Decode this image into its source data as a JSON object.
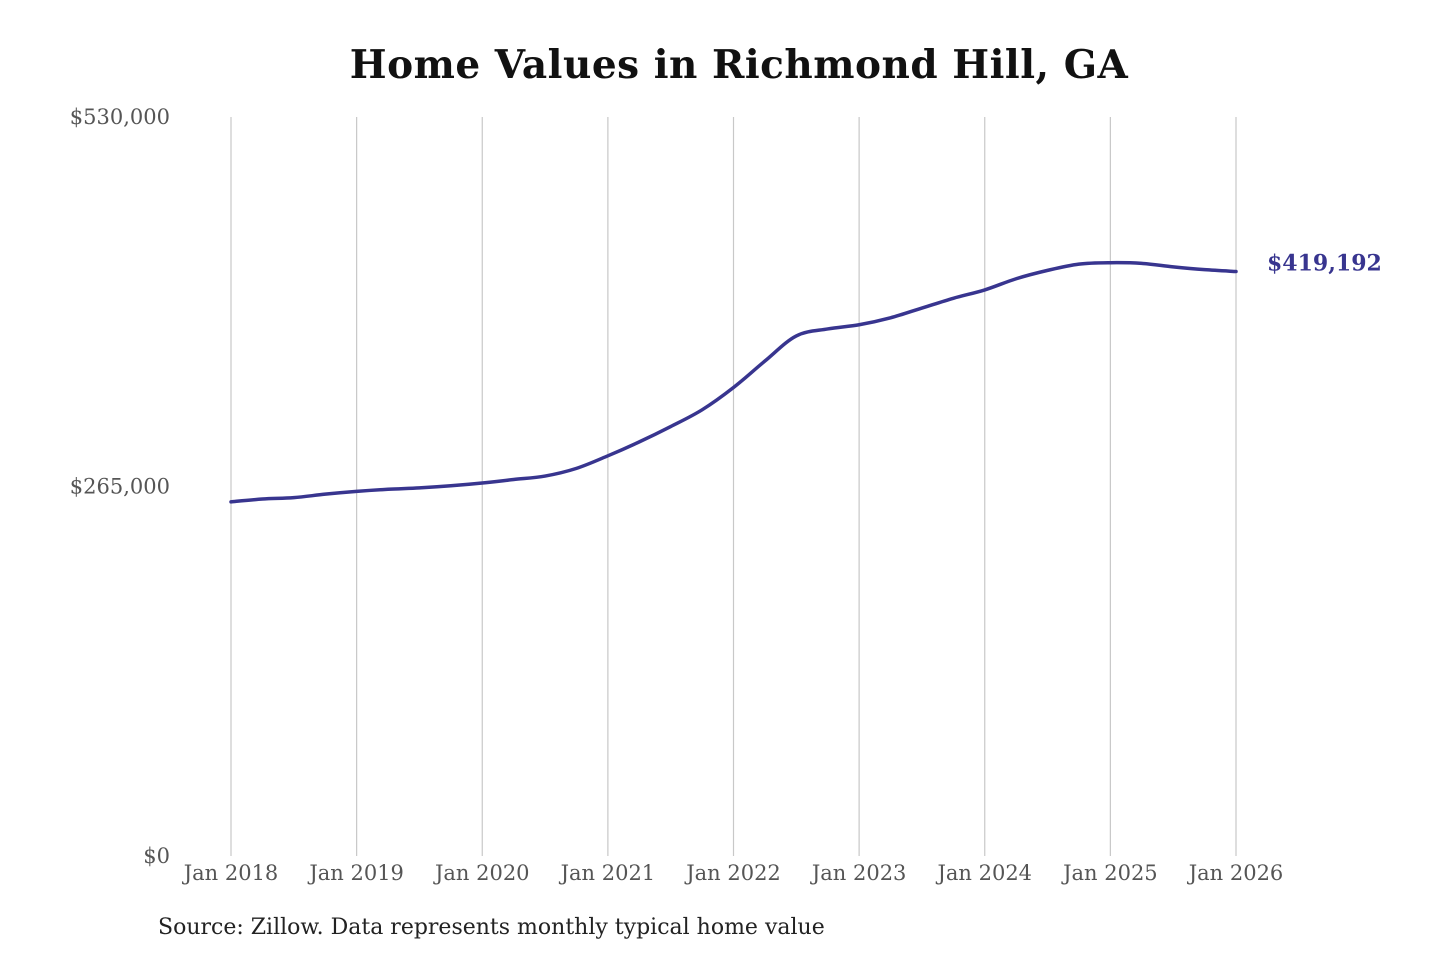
{
  "chart_data": {
    "type": "line",
    "title": "Home Values in Richmond Hill, GA",
    "xlabel": "",
    "ylabel": "",
    "x_tick_labels": [
      "Jan 2018",
      "Jan 2019",
      "Jan 2020",
      "Jan 2021",
      "Jan 2022",
      "Jan 2023",
      "Jan 2024",
      "Jan 2025",
      "Jan 2026"
    ],
    "y_tick_labels": [
      "$530,000",
      "$265,000",
      "$0"
    ],
    "y_ticks": [
      530000,
      265000,
      0
    ],
    "ylim": [
      0,
      530000
    ],
    "xlim": [
      "2018-01",
      "2026-01"
    ],
    "grid": "vertical",
    "series": [
      {
        "color": "#38358f",
        "end_label": "$419,192",
        "points": [
          {
            "x": "2018-01",
            "y": 254000
          },
          {
            "x": "2018-04",
            "y": 256000
          },
          {
            "x": "2018-07",
            "y": 257000
          },
          {
            "x": "2018-10",
            "y": 259500
          },
          {
            "x": "2019-01",
            "y": 261500
          },
          {
            "x": "2019-04",
            "y": 263000
          },
          {
            "x": "2019-07",
            "y": 264000
          },
          {
            "x": "2019-10",
            "y": 265500
          },
          {
            "x": "2020-01",
            "y": 267500
          },
          {
            "x": "2020-04",
            "y": 270000
          },
          {
            "x": "2020-07",
            "y": 272500
          },
          {
            "x": "2020-10",
            "y": 278000
          },
          {
            "x": "2021-01",
            "y": 287000
          },
          {
            "x": "2021-04",
            "y": 297000
          },
          {
            "x": "2021-07",
            "y": 308000
          },
          {
            "x": "2021-10",
            "y": 320000
          },
          {
            "x": "2022-01",
            "y": 336000
          },
          {
            "x": "2022-04",
            "y": 355000
          },
          {
            "x": "2022-07",
            "y": 373000
          },
          {
            "x": "2022-10",
            "y": 378000
          },
          {
            "x": "2023-01",
            "y": 381000
          },
          {
            "x": "2023-04",
            "y": 386000
          },
          {
            "x": "2023-07",
            "y": 393000
          },
          {
            "x": "2023-10",
            "y": 400000
          },
          {
            "x": "2024-01",
            "y": 406000
          },
          {
            "x": "2024-04",
            "y": 414000
          },
          {
            "x": "2024-07",
            "y": 420000
          },
          {
            "x": "2024-10",
            "y": 424500
          },
          {
            "x": "2025-01",
            "y": 425500
          },
          {
            "x": "2025-04",
            "y": 425000
          },
          {
            "x": "2025-07",
            "y": 422500
          },
          {
            "x": "2025-10",
            "y": 420500
          },
          {
            "x": "2026-01",
            "y": 419192
          }
        ]
      }
    ],
    "source": "Source: Zillow. Data represents monthly typical home value"
  }
}
